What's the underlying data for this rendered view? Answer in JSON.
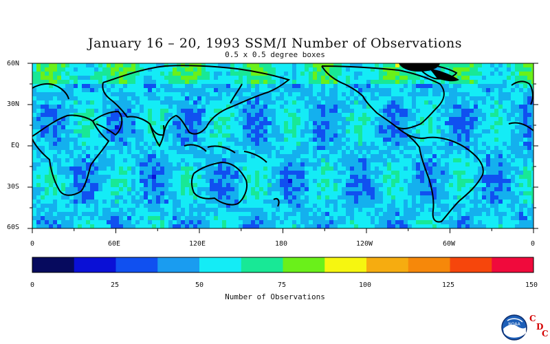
{
  "title": "January 16 – 20, 1993 SSM/I Number of Observations",
  "subtitle": "0.5 x 0.5 degree boxes",
  "lat_labels": [
    "60N",
    "30N",
    "EQ",
    "30S",
    "60S"
  ],
  "lon_labels": [
    "0",
    "60E",
    "120E",
    "180",
    "120W",
    "60W",
    "0"
  ],
  "colorbar": {
    "ticks": [
      "0",
      "25",
      "50",
      "75",
      "100",
      "125",
      "150"
    ],
    "label": "Number of Observations",
    "colors": [
      "#060a5e",
      "#0a10d6",
      "#1050f0",
      "#1a9cf0",
      "#14ecf6",
      "#18e896",
      "#6af01a",
      "#f6f610",
      "#f6ac10",
      "#f6880a",
      "#f6460c",
      "#f00a3c"
    ]
  },
  "logo": {
    "name": "noaa-logo",
    "text": "NOAA",
    "letters": [
      "C",
      "D",
      "C"
    ]
  }
}
